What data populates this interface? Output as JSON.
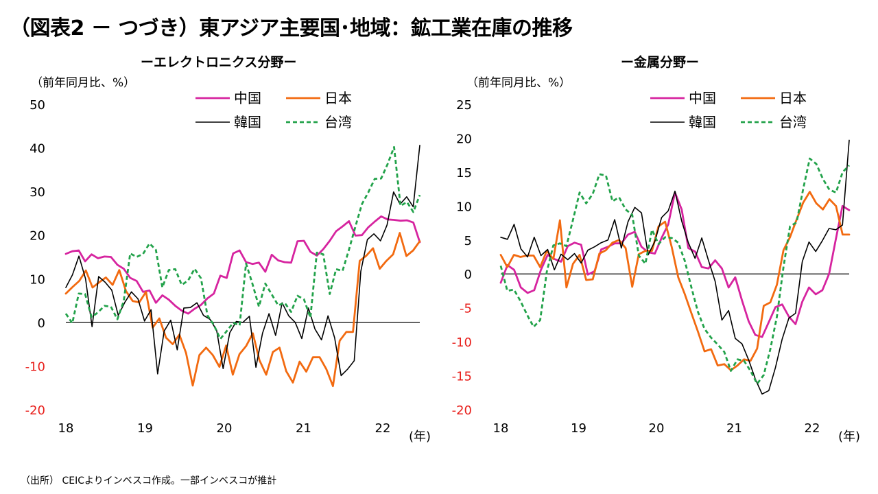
{
  "title": "（図表2 － つづき）東アジア主要国･地域：鉱工業在庫の推移",
  "source": "（出所） CEICよりインベスコ作成。一部インベスコが推計",
  "colors": {
    "china": "#D6249F",
    "japan": "#F26A10",
    "korea": "#000000",
    "taiwan": "#22A24A",
    "negative_tick": "#E8201C"
  },
  "chart_data": [
    {
      "type": "line",
      "title": "ーエレクトロニクス分野ー",
      "ylabel": "（前年同月比、%）",
      "xunit": "(年)",
      "ylim": [
        -20,
        50
      ],
      "y_ticks": [
        50,
        40,
        30,
        20,
        10,
        0,
        -10,
        -20
      ],
      "y_tick_labels": [
        "50",
        "40",
        "30",
        "20",
        "10",
        "0",
        "-10",
        "-20"
      ],
      "x_ticks": [
        2018,
        2019,
        2020,
        2021,
        2022
      ],
      "x_tick_labels": [
        "18",
        "19",
        "20",
        "21",
        "22"
      ],
      "legend": [
        "中国",
        "日本",
        "韓国",
        "台湾"
      ],
      "series": [
        {
          "name": "中国",
          "key": "china",
          "values": [
            15.7,
            16.3,
            16.5,
            14.0,
            15.6,
            14.7,
            15.1,
            15.0,
            13.2,
            12.3,
            10.2,
            9.5,
            7.0,
            7.3,
            4.5,
            6.2,
            5.2,
            3.8,
            2.7,
            2.0,
            3.1,
            4.0,
            5.5,
            6.6,
            10.7,
            10.2,
            15.8,
            16.5,
            13.8,
            13.4,
            13.7,
            11.6,
            15.5,
            14.2,
            13.8,
            13.7,
            18.6,
            18.7,
            16.2,
            15.3,
            16.8,
            18.7,
            20.9,
            22.0,
            23.2,
            19.9,
            20.0,
            21.8,
            23.1,
            24.3,
            23.6,
            23.5,
            23.3,
            23.4,
            22.9,
            18.4
          ]
        },
        {
          "name": "日本",
          "key": "japan",
          "values": [
            6.6,
            8.1,
            9.5,
            11.9,
            8.0,
            9.2,
            10.3,
            8.6,
            12.0,
            7.2,
            4.9,
            4.6,
            7.0,
            -1.2,
            0.9,
            -3.5,
            -5.0,
            -2.8,
            -7.0,
            -14.5,
            -7.5,
            -5.8,
            -7.5,
            -10.2,
            -5.3,
            -12.0,
            -7.3,
            -5.4,
            -2.5,
            -8.7,
            -12.0,
            -6.8,
            -5.8,
            -11.2,
            -13.8,
            -9.0,
            -11.3,
            -8.0,
            -8.0,
            -10.7,
            -14.6,
            -4.2,
            -2.2,
            -2.2,
            14.1,
            15.3,
            17.0,
            12.3,
            14.1,
            15.6,
            20.5,
            15.2,
            16.5,
            18.6
          ]
        },
        {
          "name": "韓国",
          "key": "korea",
          "values": [
            8.0,
            10.9,
            15.2,
            10.0,
            -1.0,
            10.5,
            9.2,
            7.4,
            1.6,
            4.6,
            7.0,
            5.4,
            0.3,
            2.9,
            -11.8,
            -2.0,
            0.5,
            -6.3,
            3.3,
            3.4,
            4.5,
            1.6,
            0.7,
            -1.8,
            -10.6,
            -2.4,
            0.2,
            0.0,
            1.4,
            -10.3,
            -2.5,
            2.0,
            -3.0,
            4.5,
            1.5,
            0.0,
            -3.7,
            3.3,
            -1.5,
            -4.0,
            1.5,
            -3.5,
            -12.2,
            -10.7,
            -8.8,
            11.7,
            19.0,
            20.3,
            18.7,
            22.3,
            29.9,
            27.1,
            28.8,
            26.5,
            40.6
          ]
        },
        {
          "name": "台湾",
          "key": "taiwan",
          "values": [
            2.0,
            -0.2,
            6.6,
            6.5,
            1.2,
            2.3,
            3.8,
            3.6,
            0.7,
            4.9,
            15.8,
            15.0,
            15.7,
            18.1,
            16.6,
            8.0,
            12.0,
            12.2,
            8.6,
            9.6,
            12.3,
            10.1,
            1.6,
            -0.6,
            -3.8,
            -2.0,
            -0.1,
            -0.7,
            13.5,
            8.8,
            3.6,
            8.9,
            6.4,
            3.9,
            4.5,
            2.4,
            6.1,
            5.3,
            1.1,
            16.0,
            15.6,
            6.5,
            12.2,
            11.8,
            16.7,
            22.0,
            27.1,
            29.8,
            32.9,
            33.0,
            36.3,
            40.2,
            26.7,
            27.6,
            25.3,
            29.2
          ]
        }
      ]
    },
    {
      "type": "line",
      "title": "ー金属分野ー",
      "ylabel": "（前年同月比、%）",
      "xunit": "(年)",
      "ylim": [
        -20,
        25
      ],
      "y_ticks": [
        25,
        20,
        15,
        10,
        5,
        0,
        -5,
        -10,
        -15,
        -20
      ],
      "y_tick_labels": [
        "25",
        "20",
        "15",
        "10",
        "5",
        "0",
        "-5",
        "-10",
        "-15",
        "-20"
      ],
      "x_ticks": [
        2018,
        2019,
        2020,
        2021,
        2022
      ],
      "x_tick_labels": [
        "18",
        "19",
        "20",
        "21",
        "22"
      ],
      "legend": [
        "中国",
        "日本",
        "韓国",
        "台湾"
      ],
      "series": [
        {
          "name": "中国",
          "key": "china",
          "values": [
            -1.3,
            1.3,
            0.6,
            -2.0,
            -2.8,
            -2.4,
            0.6,
            2.8,
            2.2,
            1.8,
            4.1,
            4.6,
            4.3,
            -0.1,
            0.4,
            3.6,
            4.0,
            4.5,
            4.5,
            5.8,
            6.2,
            4.0,
            3.2,
            3.0,
            5.3,
            7.3,
            12.0,
            9.5,
            3.8,
            3.3,
            1.0,
            0.8,
            2.0,
            0.8,
            -2.0,
            -0.5,
            -3.9,
            -7.0,
            -9.0,
            -9.3,
            -7.1,
            -4.9,
            -4.5,
            -6.3,
            -7.4,
            -4.1,
            -2.0,
            -3.0,
            -2.4,
            0.0,
            5.1,
            10.0,
            9.4
          ]
        },
        {
          "name": "日本",
          "key": "japan",
          "values": [
            2.8,
            1.0,
            2.8,
            2.5,
            2.7,
            2.7,
            1.0,
            3.4,
            2.2,
            7.9,
            -2.0,
            1.5,
            2.8,
            -0.9,
            -0.8,
            3.0,
            3.5,
            4.6,
            5.0,
            3.8,
            -1.9,
            2.9,
            3.4,
            3.4,
            7.0,
            7.7,
            4.0,
            -0.5,
            -3.0,
            -5.8,
            -8.5,
            -11.4,
            -11.1,
            -13.5,
            -13.3,
            -14.2,
            -13.5,
            -12.6,
            -12.8,
            -11.0,
            -4.7,
            -4.2,
            -1.6,
            3.5,
            5.4,
            8.0,
            10.5,
            12.1,
            10.4,
            9.5,
            11.0,
            10.0,
            5.8,
            5.8
          ]
        },
        {
          "name": "韓国",
          "key": "korea",
          "values": [
            5.4,
            5.1,
            7.3,
            3.7,
            2.5,
            5.4,
            2.7,
            3.6,
            0.6,
            2.9,
            2.1,
            3.0,
            1.6,
            3.5,
            4.0,
            4.6,
            5.0,
            8.0,
            3.8,
            7.7,
            9.8,
            9.0,
            2.8,
            4.8,
            8.3,
            9.3,
            12.2,
            7.8,
            4.6,
            2.3,
            5.3,
            2.0,
            -1.1,
            -6.8,
            -5.4,
            -9.5,
            -10.3,
            -12.7,
            -15.5,
            -17.7,
            -17.2,
            -13.8,
            -9.6,
            -6.5,
            -5.8,
            1.8,
            4.7,
            3.3,
            4.9,
            6.7,
            6.5,
            7.2,
            19.7
          ]
        },
        {
          "name": "台湾",
          "key": "taiwan",
          "values": [
            1.2,
            -2.5,
            -2.3,
            -4.0,
            -6.0,
            -7.8,
            -6.8,
            0.3,
            4.2,
            4.5,
            4.1,
            8.0,
            12.0,
            10.4,
            11.8,
            14.7,
            14.5,
            10.7,
            11.3,
            9.5,
            8.7,
            2.7,
            1.5,
            6.5,
            4.4,
            5.4,
            5.3,
            4.6,
            1.9,
            -2.0,
            -5.6,
            -8.1,
            -9.4,
            -10.4,
            -11.5,
            -14.3,
            -12.6,
            -12.8,
            -14.3,
            -16.2,
            -14.9,
            -11.1,
            -6.3,
            1.0,
            7.0,
            7.6,
            12.5,
            17.0,
            16.2,
            14.0,
            12.4,
            12.0,
            15.0,
            16.0
          ]
        }
      ]
    }
  ]
}
